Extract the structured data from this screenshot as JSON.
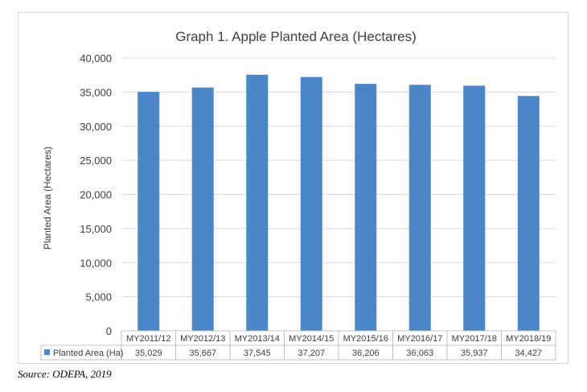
{
  "chart_data": {
    "type": "bar",
    "title": "Graph 1. Apple Planted Area (Hectares)",
    "ylabel": "Planted Area (Hectares)",
    "xlabel": "",
    "categories": [
      "MY2011/12",
      "MY2012/13",
      "MY2013/14",
      "MY2014/15",
      "MY2015/16",
      "MY2016/17",
      "MY2017/18",
      "MY2018/19"
    ],
    "series": [
      {
        "name": "Planted Area (Ha)",
        "values": [
          35029,
          35667,
          37545,
          37207,
          36206,
          36063,
          35937,
          34427
        ],
        "value_labels": [
          "35,029",
          "35,667",
          "37,545",
          "37,207",
          "36,206",
          "36,063",
          "35,937",
          "34,427"
        ],
        "color": "#4a86c8"
      }
    ],
    "ylim": [
      0,
      40000
    ],
    "yticks": [
      "0",
      "5,000",
      "10,000",
      "15,000",
      "20,000",
      "25,000",
      "30,000",
      "35,000",
      "40,000"
    ],
    "grid": true,
    "legend": "data-table-row"
  },
  "source": "Source: ODEPA, 2019",
  "colors": {
    "bar": "#4a86c8",
    "grid": "#d9d9d9",
    "text": "#404040",
    "title": "#404040"
  }
}
